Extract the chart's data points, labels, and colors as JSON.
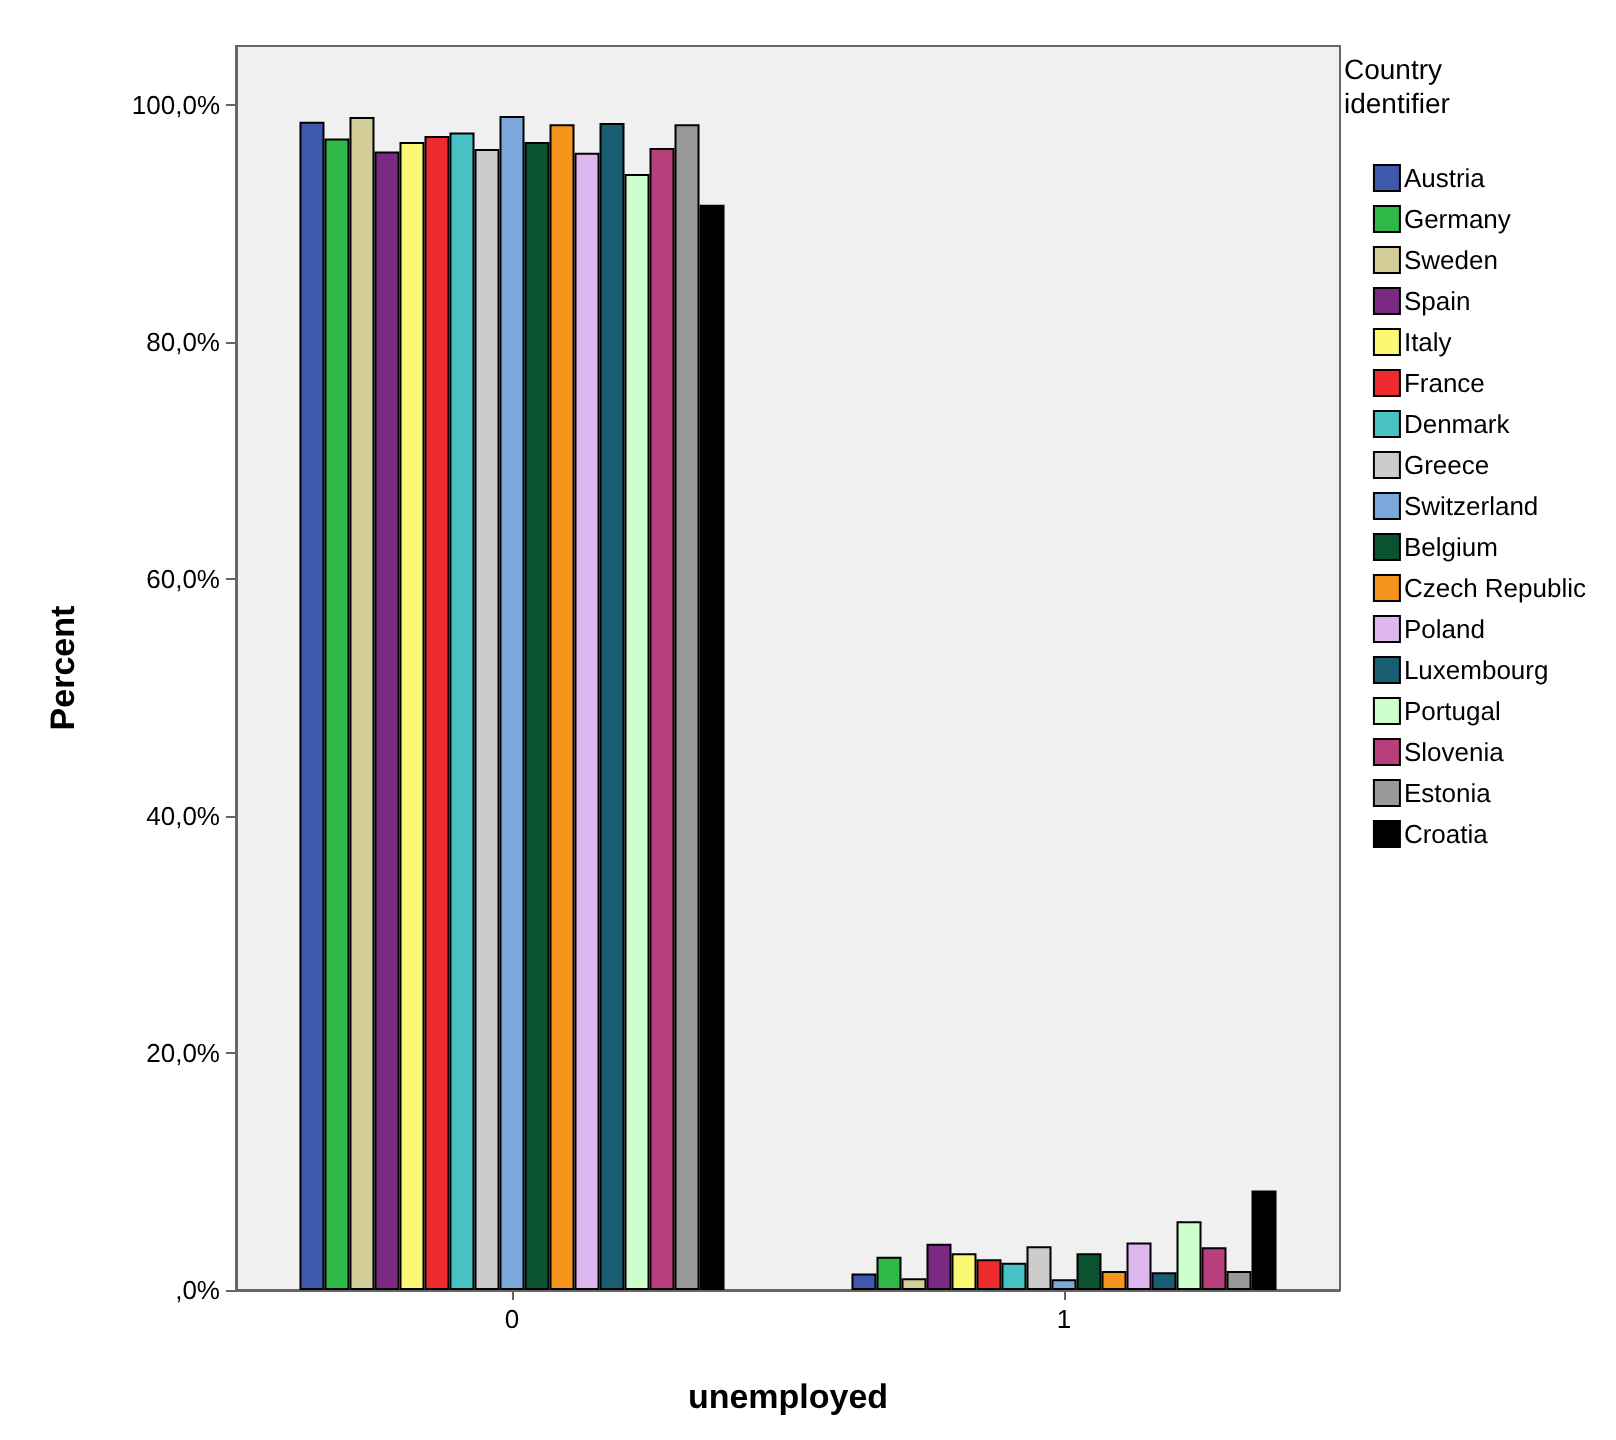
{
  "chart_data": {
    "type": "bar",
    "xlabel": "unemployed",
    "ylabel": "Percent",
    "legend_title": "Country identifier",
    "categories": [
      "0",
      "1"
    ],
    "ylim": [
      0,
      105
    ],
    "yticks": [
      {
        "value": 0,
        "label": ",0%"
      },
      {
        "value": 20,
        "label": "20,0%"
      },
      {
        "value": 40,
        "label": "40,0%"
      },
      {
        "value": 60,
        "label": "60,0%"
      },
      {
        "value": 80,
        "label": "80,0%"
      },
      {
        "value": 100,
        "label": "100,0%"
      }
    ],
    "grid": false,
    "legend": "right",
    "series": [
      {
        "name": "Austria",
        "color": "#3e58ac",
        "values": [
          98.6,
          1.4
        ]
      },
      {
        "name": "Germany",
        "color": "#2eb848",
        "values": [
          97.2,
          2.8
        ]
      },
      {
        "name": "Sweden",
        "color": "#d3ce97",
        "values": [
          99.0,
          1.0
        ]
      },
      {
        "name": "Spain",
        "color": "#7b2a83",
        "values": [
          96.1,
          3.9
        ]
      },
      {
        "name": "Italy",
        "color": "#fbf873",
        "values": [
          96.9,
          3.1
        ]
      },
      {
        "name": "France",
        "color": "#ef2a2f",
        "values": [
          97.4,
          2.6
        ]
      },
      {
        "name": "Denmark",
        "color": "#48c2c5",
        "values": [
          97.7,
          2.3
        ]
      },
      {
        "name": "Greece",
        "color": "#cccccc",
        "values": [
          96.3,
          3.7
        ]
      },
      {
        "name": "Switzerland",
        "color": "#7ba7db",
        "values": [
          99.1,
          0.9
        ]
      },
      {
        "name": "Belgium",
        "color": "#0b5330",
        "values": [
          96.9,
          3.1
        ]
      },
      {
        "name": "Czech Republic",
        "color": "#f7941d",
        "values": [
          98.4,
          1.6
        ]
      },
      {
        "name": "Poland",
        "color": "#dfb7f0",
        "values": [
          96.0,
          4.0
        ]
      },
      {
        "name": "Luxembourg",
        "color": "#195e73",
        "values": [
          98.5,
          1.5
        ]
      },
      {
        "name": "Portugal",
        "color": "#ccffcc",
        "values": [
          94.2,
          5.8
        ]
      },
      {
        "name": "Slovenia",
        "color": "#b83f7b",
        "values": [
          96.4,
          3.6
        ]
      },
      {
        "name": "Estonia",
        "color": "#999999",
        "values": [
          98.4,
          1.6
        ]
      },
      {
        "name": "Croatia",
        "color": "#000000",
        "values": [
          91.6,
          8.4
        ]
      }
    ]
  }
}
